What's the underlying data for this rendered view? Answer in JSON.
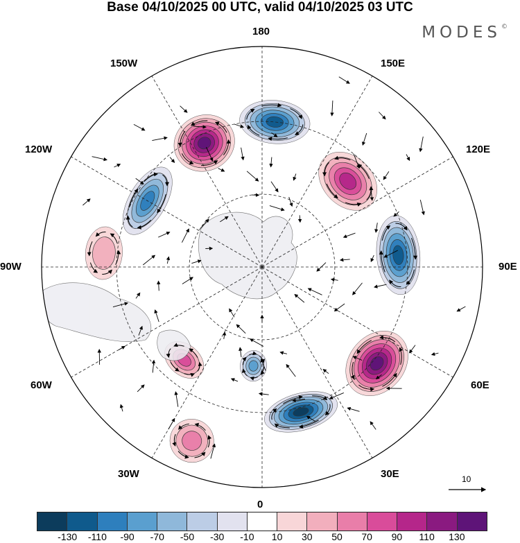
{
  "title": "Base 04/10/2025 00 UTC, valid 04/10/2025 03 UTC",
  "brand": {
    "name": "MODES",
    "mark": "©"
  },
  "longitude_labels": {
    "top": "180",
    "bottom": "0",
    "left": "90W",
    "right": "90E",
    "upper_left_1": "150W",
    "upper_left_2": "120W",
    "upper_right_1": "150E",
    "upper_right_2": "120E",
    "lower_left_1": "60W",
    "lower_left_2": "30W",
    "lower_right_1": "60E",
    "lower_right_2": "30E"
  },
  "reference_vector": {
    "label": "10"
  },
  "colorbar": {
    "colors": [
      "#0c3c5c",
      "#0f5a8c",
      "#2e7fbd",
      "#5a9fcf",
      "#8fb8da",
      "#bccde6",
      "#e2e2ef",
      "#ffffff",
      "#f8d6d8",
      "#f2afbd",
      "#e97ea9",
      "#d94c9a",
      "#b5268a",
      "#8a1a80",
      "#5e1478"
    ],
    "ticks": [
      "-130",
      "-110",
      "-90",
      "-70",
      "-50",
      "-30",
      "-10",
      "10",
      "30",
      "50",
      "70",
      "90",
      "110",
      "130"
    ]
  },
  "anomalies": [
    {
      "id": "blue-180",
      "sign": "neg",
      "value": -110,
      "lon": 175,
      "r": 0.66,
      "a": 0.16,
      "b": 0.07
    },
    {
      "id": "blue-120w",
      "sign": "neg",
      "value": -90,
      "lon": -120,
      "r": 0.6,
      "a": 0.17,
      "b": 0.06
    },
    {
      "id": "blue-90e",
      "sign": "neg",
      "value": -110,
      "lon": 95,
      "r": 0.62,
      "a": 0.18,
      "b": 0.07
    },
    {
      "id": "blue-20e",
      "sign": "neg",
      "value": -130,
      "lon": 15,
      "r": 0.68,
      "a": 0.17,
      "b": 0.06
    },
    {
      "id": "blue-10w",
      "sign": "neg",
      "value": -70,
      "lon": -5,
      "r": 0.45,
      "a": 0.06,
      "b": 0.05
    },
    {
      "id": "pink-150w",
      "sign": "pos",
      "value": 130,
      "lon": -155,
      "r": 0.62,
      "a": 0.14,
      "b": 0.09
    },
    {
      "id": "pink-130e",
      "sign": "pos",
      "value": 90,
      "lon": 135,
      "r": 0.55,
      "a": 0.15,
      "b": 0.08
    },
    {
      "id": "pink-50e",
      "sign": "pos",
      "value": 130,
      "lon": 50,
      "r": 0.68,
      "a": 0.16,
      "b": 0.09
    },
    {
      "id": "pink-45w",
      "sign": "pos",
      "value": 70,
      "lon": -40,
      "r": 0.55,
      "a": 0.1,
      "b": 0.05
    },
    {
      "id": "pink-30w",
      "sign": "pos",
      "value": 50,
      "lon": -22,
      "r": 0.85,
      "a": 0.1,
      "b": 0.07
    },
    {
      "id": "pink-100w",
      "sign": "pos",
      "value": 30,
      "lon": -95,
      "r": 0.72,
      "a": 0.12,
      "b": 0.06
    }
  ]
}
